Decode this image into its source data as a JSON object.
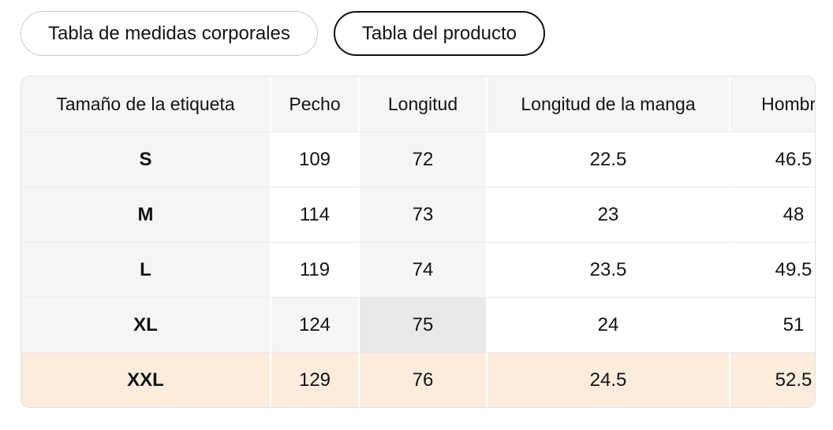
{
  "tabs": [
    {
      "id": "body-measurements",
      "label": "Tabla de medidas corporales",
      "selected": false
    },
    {
      "id": "product-table",
      "label": "Tabla del producto",
      "selected": true
    }
  ],
  "size_table": {
    "columns": [
      "Tamaño de la etiqueta",
      "Pecho",
      "Longitud",
      "Longitud de la manga",
      "Hombro"
    ],
    "rows": [
      {
        "size": "S",
        "values": [
          "109",
          "72",
          "22.5",
          "46.5"
        ]
      },
      {
        "size": "M",
        "values": [
          "114",
          "73",
          "23",
          "48"
        ]
      },
      {
        "size": "L",
        "values": [
          "119",
          "74",
          "23.5",
          "49.5"
        ]
      },
      {
        "size": "XL",
        "values": [
          "124",
          "75",
          "24",
          "51"
        ]
      },
      {
        "size": "XXL",
        "values": [
          "129",
          "76",
          "24.5",
          "52.5"
        ]
      }
    ],
    "selected_row": "XXL",
    "highlighted_cell": {
      "row": "XL",
      "column": "Longitud"
    },
    "colors": {
      "header_bg": "#f5f5f5",
      "label_column_bg": "#f5f5f5",
      "column_highlight_bg": "#f5f5f5",
      "cell_highlight_bg": "#e9e9e9",
      "selected_row_bg": "#fcecde",
      "white_cell_bg": "#ffffff"
    }
  }
}
